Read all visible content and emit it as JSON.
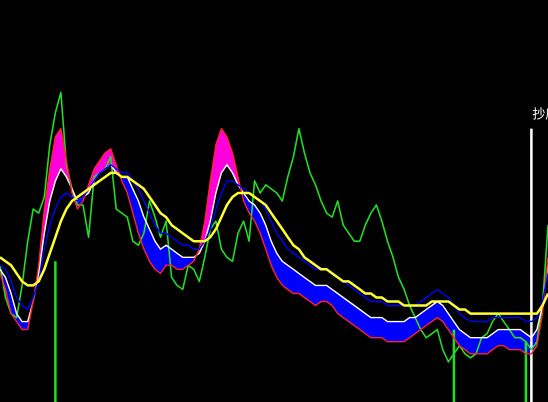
{
  "chart_data": {
    "type": "line",
    "title": "",
    "xlabel": "",
    "ylabel": "",
    "grid": false,
    "legend": "none",
    "xlim": [
      0,
      99
    ],
    "ylim": [
      0,
      100
    ],
    "x": [
      0,
      1,
      2,
      3,
      4,
      5,
      6,
      7,
      8,
      9,
      10,
      11,
      12,
      13,
      14,
      15,
      16,
      17,
      18,
      19,
      20,
      21,
      22,
      23,
      24,
      25,
      26,
      27,
      28,
      29,
      30,
      31,
      32,
      33,
      34,
      35,
      36,
      37,
      38,
      39,
      40,
      41,
      42,
      43,
      44,
      45,
      46,
      47,
      48,
      49,
      50,
      51,
      52,
      53,
      54,
      55,
      56,
      57,
      58,
      59,
      60,
      61,
      62,
      63,
      64,
      65,
      66,
      67,
      68,
      69,
      70,
      71,
      72,
      73,
      74,
      75,
      76,
      77,
      78,
      79,
      80,
      81,
      82,
      83,
      84,
      85,
      86,
      87,
      88,
      89,
      90,
      91,
      92,
      93,
      94,
      95,
      96,
      97,
      98,
      99
    ],
    "series": [
      {
        "key": "green",
        "color": "#22dd22",
        "values": [
          34,
          26,
          22,
          21,
          29,
          40,
          48,
          47,
          51,
          64,
          72,
          77,
          59,
          53,
          49,
          49,
          41,
          56,
          57,
          58,
          61,
          48,
          47,
          46,
          40,
          39,
          42,
          50,
          46,
          41,
          45,
          31,
          29,
          28,
          34,
          33,
          30,
          36,
          43,
          45,
          38,
          36,
          35,
          42,
          45,
          40,
          55,
          52,
          54,
          53,
          52,
          50,
          56,
          61,
          68,
          62,
          57,
          54,
          50,
          47,
          46,
          50,
          44,
          42,
          40,
          40,
          44,
          47,
          49,
          45,
          40,
          36,
          31,
          28,
          24,
          21,
          18,
          16,
          17,
          18,
          13,
          10,
          12,
          14,
          12,
          11,
          12,
          16,
          17,
          20,
          22,
          20,
          18,
          16,
          16,
          15,
          13,
          15,
          24,
          44
        ]
      },
      {
        "key": "white",
        "color": "#ffffff",
        "values": [
          33,
          31,
          27,
          22,
          20,
          20,
          25,
          32,
          42,
          50,
          55,
          58,
          56,
          53,
          50,
          51,
          52,
          55,
          57,
          58,
          59,
          57,
          56,
          56,
          53,
          50,
          46,
          43,
          40,
          38,
          39,
          38,
          37,
          36,
          36,
          36,
          37,
          40,
          45,
          52,
          57,
          59,
          57,
          54,
          52,
          50,
          49,
          47,
          44,
          40,
          37,
          35,
          34,
          33,
          32,
          31,
          30,
          29,
          29,
          29,
          28,
          27,
          26,
          25,
          24,
          23,
          22,
          21,
          21,
          21,
          20,
          20,
          20,
          20,
          21,
          21,
          22,
          23,
          24,
          25,
          24,
          22,
          20,
          18,
          17,
          16,
          16,
          16,
          16,
          17,
          18,
          18,
          18,
          18,
          18,
          17,
          16,
          18,
          24,
          34
        ]
      },
      {
        "key": "red",
        "color": "#ff2222",
        "values": [
          32,
          28,
          22,
          20,
          18,
          18,
          25,
          34,
          48,
          58,
          66,
          68,
          60,
          52,
          48,
          50,
          54,
          58,
          60,
          62,
          63,
          59,
          55,
          52,
          47,
          42,
          38,
          35,
          33,
          32,
          34,
          34,
          33,
          33,
          34,
          35,
          38,
          45,
          55,
          64,
          68,
          66,
          62,
          56,
          50,
          47,
          45,
          42,
          38,
          34,
          31,
          29,
          28,
          27,
          27,
          26,
          25,
          24,
          25,
          25,
          24,
          22,
          21,
          20,
          19,
          18,
          17,
          16,
          16,
          16,
          15,
          15,
          15,
          15,
          16,
          17,
          18,
          19,
          20,
          21,
          20,
          18,
          16,
          14,
          13,
          12,
          12,
          12,
          12,
          13,
          14,
          14,
          13,
          13,
          13,
          12,
          12,
          14,
          22,
          36
        ]
      },
      {
        "key": "blue",
        "color": "#0000ff",
        "values": [
          34,
          33,
          30,
          26,
          24,
          23,
          26,
          30,
          38,
          44,
          48,
          51,
          52,
          51,
          50,
          51,
          53,
          55,
          57,
          58,
          59,
          58,
          57,
          57,
          55,
          53,
          50,
          47,
          44,
          42,
          42,
          41,
          40,
          39,
          39,
          38,
          38,
          40,
          43,
          48,
          52,
          55,
          55,
          54,
          53,
          52,
          51,
          50,
          48,
          45,
          42,
          40,
          38,
          37,
          36,
          35,
          34,
          33,
          33,
          33,
          32,
          31,
          30,
          29,
          28,
          27,
          26,
          25,
          25,
          25,
          24,
          24,
          24,
          24,
          24,
          24,
          25,
          26,
          27,
          28,
          27,
          26,
          24,
          22,
          21,
          20,
          20,
          20,
          20,
          21,
          21,
          21,
          21,
          21,
          21,
          20,
          20,
          21,
          25,
          32
        ]
      },
      {
        "key": "yellow",
        "color": "#ffff33",
        "values": [
          36,
          35,
          34,
          32,
          30,
          29,
          29,
          30,
          33,
          37,
          41,
          45,
          48,
          50,
          51,
          52,
          53,
          54,
          55,
          56,
          57,
          57,
          56,
          56,
          55,
          54,
          53,
          51,
          49,
          47,
          46,
          44,
          43,
          42,
          41,
          40,
          40,
          40,
          41,
          43,
          46,
          49,
          51,
          52,
          52,
          52,
          51,
          50,
          49,
          47,
          45,
          43,
          41,
          39,
          38,
          36,
          35,
          34,
          33,
          33,
          32,
          31,
          30,
          30,
          29,
          28,
          27,
          27,
          26,
          26,
          25,
          25,
          25,
          24,
          24,
          24,
          24,
          24,
          25,
          25,
          25,
          25,
          24,
          23,
          23,
          22,
          22,
          22,
          22,
          22,
          22,
          22,
          22,
          22,
          22,
          22,
          22,
          22,
          24,
          27
        ]
      }
    ],
    "fills": [
      {
        "between": [
          "red",
          "white"
        ],
        "color_when_above": "#ff00dd",
        "color_when_below": "#0000ff"
      }
    ],
    "signals": [
      {
        "x": 10,
        "y": 35,
        "color": "#22dd22"
      },
      {
        "x": 82,
        "y": 18,
        "color": "#22dd22"
      },
      {
        "x": 95,
        "y": 15,
        "color": "#22dd22"
      },
      {
        "x": 96,
        "y": 68,
        "color": "#ffffff",
        "label": "抄底"
      }
    ]
  }
}
